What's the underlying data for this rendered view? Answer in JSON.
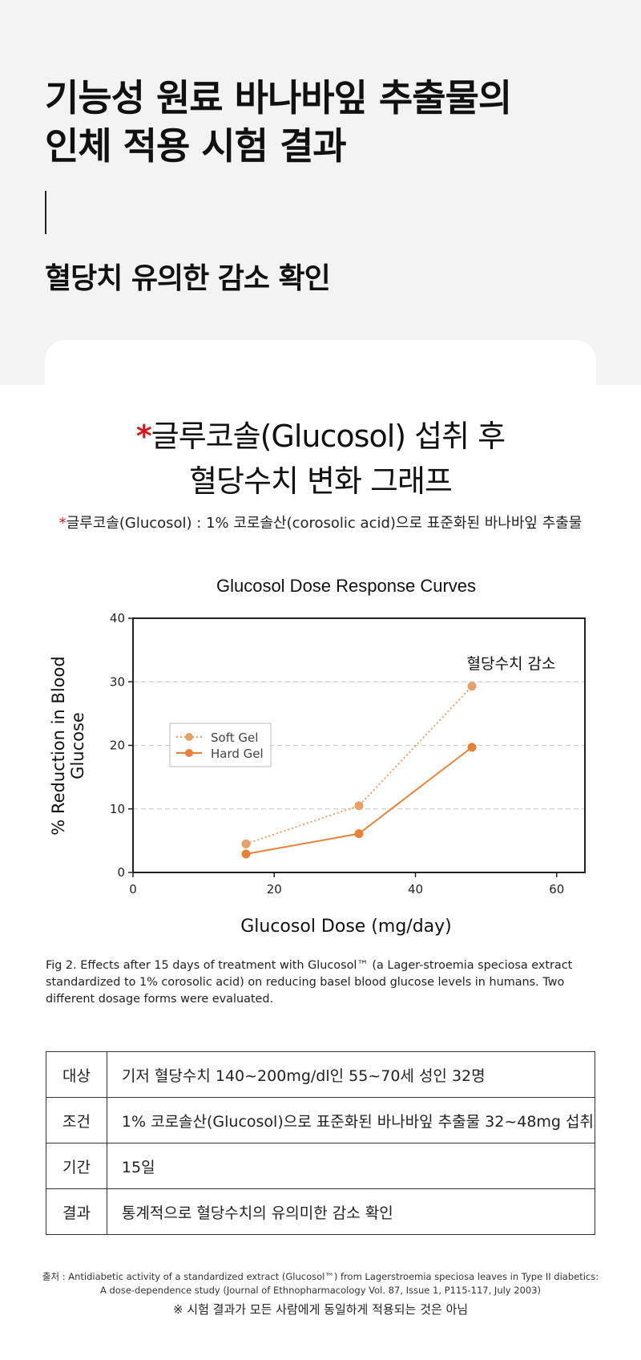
{
  "hero": {
    "title_line1": "기능성 원료 바나바잎 추출물의",
    "title_line2": "인체 적용 시험 결과",
    "subtitle": "혈당치 유의한 감소 확인"
  },
  "graph_heading": {
    "star": "*",
    "line1": "글루코솔(Glucosol) 섭취 후",
    "line2": "혈당수치 변화 그래프"
  },
  "footnote": {
    "star": "*",
    "text": "글루코솔(Glucosol) : 1% 코로솔산(corosolic acid)으로 표준화된 바나바잎 추출물"
  },
  "chart_data": {
    "type": "line",
    "title": "Glucosol Dose Response Curves",
    "xlabel": "Glucosol Dose (mg/day)",
    "ylabel_line1": "% Reduction in Blood",
    "ylabel_line2": "Glucose",
    "xlim": [
      0,
      64
    ],
    "ylim": [
      0,
      40
    ],
    "xticks": [
      0,
      20,
      40,
      60
    ],
    "yticks": [
      0,
      10,
      20,
      30,
      40
    ],
    "grid": "horizontal dashed at 10, 20, 30",
    "legend_position": "center-left",
    "annotation": "혈당수치 감소",
    "series": [
      {
        "name": "Soft Gel",
        "style": "dotted",
        "color": "#e8a06a",
        "x": [
          16,
          32,
          48
        ],
        "y": [
          4.5,
          10.5,
          29.3
        ]
      },
      {
        "name": "Hard Gel",
        "style": "solid",
        "color": "#e8823a",
        "x": [
          16,
          32,
          48
        ],
        "y": [
          2.9,
          6.1,
          19.7
        ]
      }
    ]
  },
  "caption": "Fig 2. Effects after 15 days of treatment with Glucosol™ (a Lager-stroemia speciosa extract standardized to 1% corosolic acid) on reducing basel blood glucose levels in humans. Two different dosage forms were evaluated.",
  "table": {
    "rows": [
      {
        "label": "대상",
        "value": "기저 혈당수치 140~200mg/dl인 55~70세 성인 32명"
      },
      {
        "label": "조건",
        "value": "1% 코로솔산(Glucosol)으로 표준화된 바나바잎 추출물 32~48mg 섭취"
      },
      {
        "label": "기간",
        "value": "15일"
      },
      {
        "label": "결과",
        "value": "통계적으로 혈당수치의 유의미한 감소 확인"
      }
    ]
  },
  "source": {
    "line1": "출처 : Antidiabetic activity of a standardized extract (Glucosol™) from Lagerstroemia speciosa leaves in Type II diabetics:",
    "line2": "A dose-dependence study (Journal of Ethnopharmacology Vol. 87, Issue 1, P115-117, July 2003)"
  },
  "disclaimer": "※ 시험 결과가 모든 사람에게 동일하게 적용되는 것은 아님"
}
